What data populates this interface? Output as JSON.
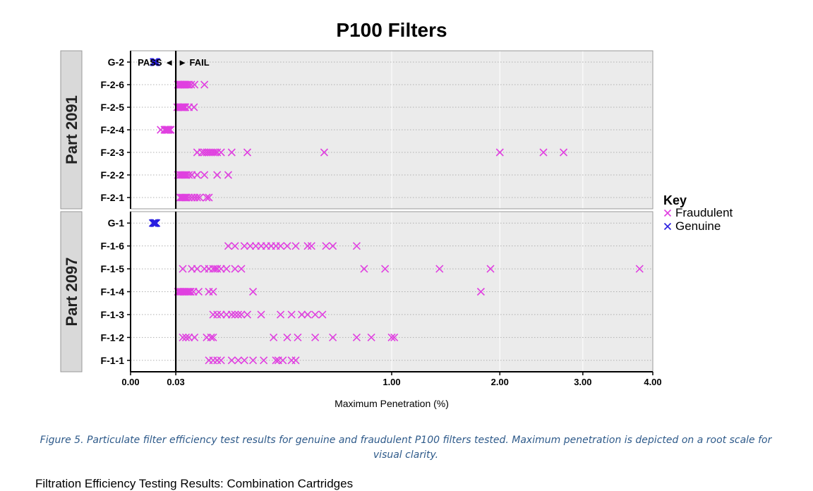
{
  "chart_data": {
    "type": "scatter",
    "title": "P100 Filters",
    "xlabel": "Maximum Penetration (%)",
    "x_scale": "sqrt",
    "xlim": [
      0,
      4.0
    ],
    "x_ticks": [
      {
        "value": 0.0,
        "label": "0.00"
      },
      {
        "value": 0.03,
        "label": "0.03"
      },
      {
        "value": 1.0,
        "label": "1.00"
      },
      {
        "value": 2.0,
        "label": "2.00"
      },
      {
        "value": 3.0,
        "label": "3.00"
      },
      {
        "value": 4.0,
        "label": "4.00"
      }
    ],
    "threshold": {
      "value": 0.03,
      "left_label": "PASS ◄",
      "right_label": "► FAIL"
    },
    "shading": "fail region shaded light grey",
    "grid": true,
    "legend": {
      "title": "Key",
      "position": "right",
      "entries": [
        {
          "name": "Fraudulent",
          "color": "#e040e0"
        },
        {
          "name": "Genuine",
          "color": "#2a1fe0"
        }
      ]
    },
    "colors": {
      "fraudulent": "#e040e0",
      "genuine": "#2a1fe0",
      "threshold": "#000000",
      "panel_strip": "#d9d9d9",
      "fail_bg": "#ebebeb"
    },
    "panels": [
      {
        "label": "Part 2091",
        "rows": [
          {
            "label": "G-2",
            "group": "Genuine",
            "values": [
              0.0078,
              0.008,
              0.0082,
              0.0084,
              0.0086,
              0.0088,
              0.009,
              0.0092,
              0.0094,
              0.0096,
              0.0099
            ]
          },
          {
            "label": "F-2-6",
            "group": "Fraudulent",
            "values": [
              0.033,
              0.034,
              0.035,
              0.036,
              0.037,
              0.038,
              0.039,
              0.04,
              0.041,
              0.042,
              0.043,
              0.045,
              0.047,
              0.05,
              0.054,
              0.06,
              0.08
            ]
          },
          {
            "label": "F-2-5",
            "group": "Fraudulent",
            "values": [
              0.032,
              0.034,
              0.036,
              0.037,
              0.038,
              0.039,
              0.04,
              0.041,
              0.042,
              0.043,
              0.044,
              0.05,
              0.059
            ]
          },
          {
            "label": "F-2-4",
            "group": "Fraudulent",
            "values": [
              0.0133,
              0.0168,
              0.0174,
              0.0178,
              0.0182,
              0.0186,
              0.019,
              0.0194,
              0.0198,
              0.0202,
              0.0206,
              0.021,
              0.0214,
              0.0228,
              0.0232,
              0.0236
            ]
          },
          {
            "label": "F-2-3",
            "group": "Fraudulent",
            "values": [
              0.065,
              0.075,
              0.08,
              0.085,
              0.09,
              0.095,
              0.1,
              0.105,
              0.11,
              0.12,
              0.15,
              0.2,
              0.55,
              2.0,
              2.5,
              2.75
            ]
          },
          {
            "label": "F-2-2",
            "group": "Fraudulent",
            "values": [
              0.033,
              0.036,
              0.038,
              0.04,
              0.042,
              0.044,
              0.046,
              0.05,
              0.055,
              0.065,
              0.08,
              0.11,
              0.14
            ]
          },
          {
            "label": "F-2-1",
            "group": "Fraudulent",
            "values": [
              0.036,
              0.038,
              0.04,
              0.042,
              0.044,
              0.046,
              0.05,
              0.055,
              0.06,
              0.065,
              0.07,
              0.085,
              0.09
            ]
          }
        ]
      },
      {
        "label": "Part 2097",
        "rows": [
          {
            "label": "G-1",
            "group": "Genuine",
            "values": [
              0.0072,
              0.0078,
              0.008,
              0.0082,
              0.0084,
              0.0086,
              0.0088,
              0.009,
              0.0092,
              0.0094,
              0.0098
            ]
          },
          {
            "label": "F-1-6",
            "group": "Fraudulent",
            "values": [
              0.14,
              0.16,
              0.19,
              0.21,
              0.23,
              0.25,
              0.27,
              0.29,
              0.31,
              0.33,
              0.36,
              0.4,
              0.46,
              0.48,
              0.56,
              0.6,
              0.75
            ]
          },
          {
            "label": "F-1-5",
            "group": "Fraudulent",
            "values": [
              0.04,
              0.055,
              0.065,
              0.08,
              0.09,
              0.1,
              0.105,
              0.11,
              0.12,
              0.135,
              0.16,
              0.18,
              0.8,
              0.95,
              1.4,
              1.9,
              3.8
            ]
          },
          {
            "label": "F-1-4",
            "group": "Fraudulent",
            "values": [
              0.033,
              0.035,
              0.037,
              0.039,
              0.041,
              0.043,
              0.045,
              0.047,
              0.049,
              0.051,
              0.053,
              0.058,
              0.068,
              0.09,
              0.1,
              0.22,
              1.8
            ]
          },
          {
            "label": "F-1-3",
            "group": "Fraudulent",
            "values": [
              0.1,
              0.11,
              0.12,
              0.135,
              0.15,
              0.16,
              0.17,
              0.18,
              0.2,
              0.25,
              0.33,
              0.38,
              0.43,
              0.46,
              0.5,
              0.54
            ]
          },
          {
            "label": "F-1-2",
            "group": "Fraudulent",
            "values": [
              0.04,
              0.045,
              0.05,
              0.06,
              0.085,
              0.095,
              0.1,
              0.3,
              0.36,
              0.41,
              0.5,
              0.6,
              0.75,
              0.85,
              1.0,
              1.02
            ]
          },
          {
            "label": "F-1-1",
            "group": "Fraudulent",
            "values": [
              0.09,
              0.1,
              0.11,
              0.12,
              0.15,
              0.17,
              0.19,
              0.22,
              0.26,
              0.31,
              0.32,
              0.34,
              0.38,
              0.4
            ]
          }
        ]
      }
    ]
  },
  "caption": "Figure 5. Particulate filter efficiency test results for genuine and fraudulent P100 filters tested. Maximum penetration is depicted on a root scale for visual clarity.",
  "next_heading": "Filtration Efficiency Testing Results: Combination Cartridges"
}
